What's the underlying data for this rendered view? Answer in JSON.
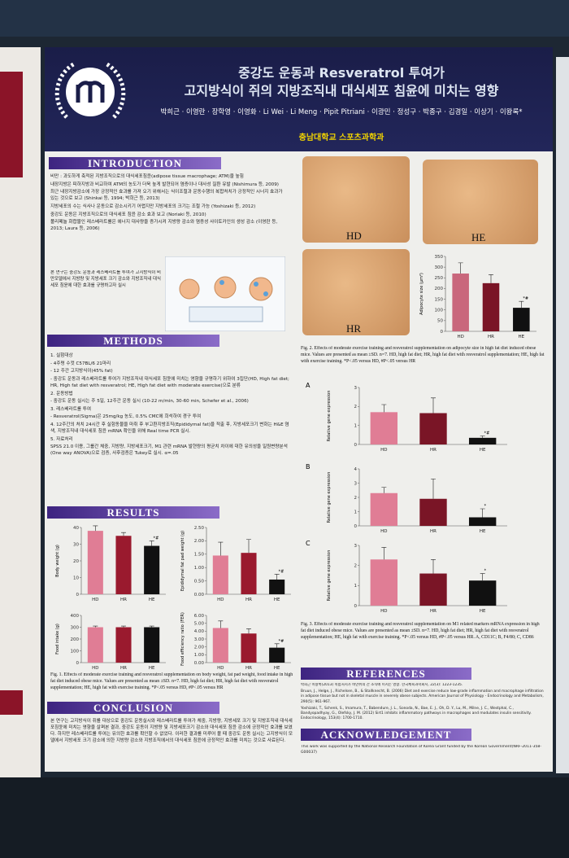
{
  "header": {
    "title_lines": [
      "중강도 운동과 Resveratrol 투여가",
      "고지방식이 쥐의 지방조직내 대식세포 침윤에 미치는 영향"
    ],
    "authors": "박희근 · 이영란 · 장학영 · 이영화 · Li Wei · Li Meng · Pipit Pitriani · 이광민 · 정성구 · 박종구 · 김경일 · 이상기 · 이왕록*",
    "affiliation": "충남대학교 스포츠과학과"
  },
  "introduction": {
    "heading": "INTRODUCTION",
    "bullets": [
      "비만 : 과도하게 축적된 지방조직으로의 대식세포침윤(adipose tissue macrophage; ATM)을 높힘",
      "내장지방은 피하지방과 비교하여 ATM의 농도가 더욱 높게 발현되어 염증이나 대사성 질환 유발 (Nishimura 등, 2009)",
      "최근 내장지방감소에 가장 긍정적인 효과를 가져 오기 위해서는 식이조절과 운동수행의 복합처치가 긍정적인 시너지 효과가 있는 것으로 보고 (Shinkai 등, 1994; 박희근 등, 2013)",
      "지방세포의 수는 식사나 운동으로 감소시키기 어렵지만 지방세포의 크기는 조절 가능 (Yoshizaki 등, 2012)",
      "중강도 운동은 지방조직으로의 대식세포 침윤 감소 효과 보고 (Noriaki 등, 2010)",
      "폴리페놀 화합물인 레스베라트롤은 에너지 대사량을 증가시켜 지방량 감소와 염증성 사이토카인의 생성 감소 (이영란 등, 2013; Laura 등, 2006)"
    ],
    "aim": "본 연구는 중강도 운동과 레스베라트롤 투여가 고지방식이 비만모델에서 지방량 및 지방세포 크기 감소와 지방조직내 대식세포 침윤에 대한 효과를 규명하고자 실시"
  },
  "methods": {
    "heading": "METHODS",
    "items": [
      "1. 실험대상",
      "- 4주령 수컷 C57BL/6 21마리",
      "- 12 주간 고지방식이(45% fat)",
      "- 중강도 운동과 레스베라트롤 투여가 지방조직내 대식세포 침윤에 미치는 영향을 규명하기 위하여 3집단(HD, High fat diet; HR, High fat diet with resveratrol; HE, High fat diet with moderate exercise)으로 분류",
      "2. 운동방법",
      "- 중강도 운동 실시는 주 5일, 12주간 운동 실시 (10-22 m/min, 30-60 min, Schefer et al., 2006)",
      "3. 레스베라트롤 투여",
      "- Resveratrol(Sigma)은 25mg/kg 농도, 0.5% CMC에 희석하여 경구 투여",
      "4. 12주간의 처치 24시간 후 실험동물을 마취 후 부고환지방조직(Epididymal fat)을 적출 후, 지방세포크기 변화는 H&E 염색, 지방조직내 대식세포 침윤 mRNA 확인을 위해 Real time PCR 실시.",
      "5. 자료처리",
      "SPSS 21.0 이용, 그룹간 체중, 지방량, 지방세포크기, M1 관련 mRNA 발현량의 평균치 차이에 대한 유의성을 일원변량분석(One way ANOVA)으로 검증, 사후검증은 Tukey로 실시. α=.05"
    ]
  },
  "results": {
    "heading": "RESULTS",
    "figure1_caption": "Fig. 1. Effects of moderate exercise training and resveratrol supplementation on body weight, fat pad weight, food intake in high fat diet induced obese mice. Values are presented as mean ±SD. n=7. HD, high fat diet; HR, high fat diet with resveratrol supplementation; HE, high fat with exercise training. *P<.05 versus HD, #P<.05 versus HR"
  },
  "figure_images": {
    "labels": [
      "HD",
      "HE",
      "HR"
    ]
  },
  "figure2_caption": "Fig. 2. Effects of moderate exercise training and resveratrol supplementation on adipocyte size in high fat diet induced obese mice. Values are presented as mean ±SD. n=7. HD, high fat diet; HR, high fat diet with resveratrol supplementation; HE, high fat with exercise training. *P<.05 versus HD, #P<.05 versus HR",
  "figure3_caption": "Fig. 3. Effects of moderate exercise training and resveratrol supplementation on M1 related markers mRNA expression in high fat diet induced obese mice. Values are presented as mean ±SD. n=7. HD, high fat diet; HR, high fat diet with resveratrol supplementation; HE, high fat with exercise training. *P<.05 versus HD, #P<.05 versus HR. A, CD11C; B, F4/80; C, CD86",
  "charts": [
    {
      "type": "bar",
      "ylabel": "Adipocyte size (μm²)",
      "categories": [
        "HD",
        "HR",
        "HE"
      ],
      "values": [
        270,
        225,
        110
      ],
      "errors": [
        50,
        40,
        30
      ],
      "colors": [
        "#c9677c",
        "#7a1526",
        "#111111"
      ],
      "ylim": [
        0,
        350
      ],
      "yticks": [
        0,
        50,
        100,
        150,
        200,
        250,
        300,
        350
      ],
      "annotations": [
        null,
        null,
        "*#"
      ]
    },
    {
      "type": "bar",
      "panel": "A",
      "ylabel": "Relative gene expression",
      "categories": [
        "HD",
        "HR",
        "HE"
      ],
      "values": [
        1.7,
        1.65,
        0.35
      ],
      "errors": [
        0.4,
        0.8,
        0.1
      ],
      "colors": [
        "#e07d95",
        "#7a1526",
        "#111111"
      ],
      "ylim": [
        0,
        3
      ],
      "yticks": [
        0,
        1,
        2,
        3
      ],
      "annotations": [
        null,
        null,
        "*#"
      ]
    },
    {
      "type": "bar",
      "panel": "B",
      "ylabel": "Relative gene expression",
      "categories": [
        "HD",
        "HR",
        "HE"
      ],
      "values": [
        2.3,
        1.9,
        0.6
      ],
      "errors": [
        0.4,
        1.4,
        0.6
      ],
      "colors": [
        "#e07d95",
        "#7a1526",
        "#111111"
      ],
      "ylim": [
        0,
        4
      ],
      "yticks": [
        0,
        1,
        2,
        3,
        4
      ],
      "annotations": [
        null,
        null,
        "*"
      ]
    },
    {
      "type": "bar",
      "panel": "C",
      "ylabel": "Relative gene expression",
      "categories": [
        "HD",
        "HR",
        "HE"
      ],
      "values": [
        2.3,
        1.6,
        1.25
      ],
      "errors": [
        0.6,
        0.7,
        0.35
      ],
      "colors": [
        "#e07d95",
        "#7a1526",
        "#111111"
      ],
      "ylim": [
        0,
        3
      ],
      "yticks": [
        0,
        1,
        2,
        3
      ],
      "annotations": [
        null,
        null,
        "*"
      ]
    },
    {
      "type": "bar",
      "ylabel": "Body weight (g)",
      "categories": [
        "HD",
        "HR",
        "HE"
      ],
      "values": [
        38,
        35,
        29
      ],
      "errors": [
        3,
        2,
        3
      ],
      "colors": [
        "#e07d95",
        "#9a1a2e",
        "#111111"
      ],
      "ylim": [
        0,
        40
      ],
      "yticks": [
        0,
        10,
        20,
        30,
        40
      ],
      "annotations": [
        null,
        null,
        "*#"
      ]
    },
    {
      "type": "bar",
      "ylabel": "Epididymal fat pad weight (g)",
      "categories": [
        "HD",
        "HR",
        "HE"
      ],
      "values": [
        1.45,
        1.55,
        0.55
      ],
      "errors": [
        0.5,
        0.5,
        0.2
      ],
      "colors": [
        "#e07d95",
        "#9a1a2e",
        "#111111"
      ],
      "ylim": [
        0,
        2.5
      ],
      "yticks": [
        {
          "value": 0,
          "label": "0.00"
        },
        {
          "value": 0.5,
          "label": "0.50"
        },
        {
          "value": 1,
          "label": "1.00"
        },
        {
          "value": 1.5,
          "label": "1.50"
        },
        {
          "value": 2,
          "label": "2.00"
        },
        {
          "value": 2.5,
          "label": "2.50"
        }
      ],
      "annotations": [
        null,
        null,
        "*#"
      ]
    },
    {
      "type": "bar",
      "ylabel": "Food intake (g)",
      "categories": [
        "HD",
        "HR",
        "HE"
      ],
      "values": [
        300,
        300,
        300
      ],
      "errors": [
        10,
        10,
        10
      ],
      "colors": [
        "#e07d95",
        "#9a1a2e",
        "#111111"
      ],
      "ylim": [
        0,
        400
      ],
      "yticks": [
        0,
        100,
        200,
        300,
        400
      ],
      "annotations": [
        null,
        null,
        null
      ]
    },
    {
      "type": "bar",
      "ylabel": "Food efficiency ratio (FER)",
      "categories": [
        "HD",
        "HR",
        "HE"
      ],
      "values": [
        4.4,
        3.7,
        1.9
      ],
      "errors": [
        0.9,
        0.6,
        0.5
      ],
      "colors": [
        "#e07d95",
        "#9a1a2e",
        "#111111"
      ],
      "ylim": [
        0,
        6
      ],
      "yticks": [
        {
          "value": 0,
          "label": "0.00"
        },
        {
          "value": 1,
          "label": "1.00"
        },
        {
          "value": 2,
          "label": "2.00"
        },
        {
          "value": 3,
          "label": "3.00"
        },
        {
          "value": 4,
          "label": "4.00"
        },
        {
          "value": 5,
          "label": "5.00"
        },
        {
          "value": 6,
          "label": "6.00"
        }
      ],
      "annotations": [
        null,
        null,
        "*#"
      ]
    }
  ],
  "conclusion": {
    "heading": "CONCLUSION",
    "text": "본 연구는 고지방식이 쥐를 대상으로 중강도 운동실시와 레스베라트롤 투여가 체중, 지방량, 지방세포 크기 및 지방조직내 대식세포침윤에 미치는 영향을 살펴본 결과, 중강도 운동이 지방량 및 지방세포크기 감소와 대식세포 침윤 감소에 긍정적인 효과를 보였다. 하지만 레스베라트롤 투여는 유의한 효과를 확인할 수 없었다. 이러한 결과를 미루어 볼 때 중강도 운동 실시는 고지방식이 모델에서 지방세포 크기 감소에 의한 지방량 감소와 지방조직에서의 대식세포 침윤에 긍정적인 효과를 미치는 것으로 사료된다."
  },
  "references": {
    "heading": "REFERENCES",
    "items": [
      "박희근 이왕록(2013) 복합처치가 비만쥐의 간 조직에 미치는 영향. 한국체육과학회지, 22(3): 1223-1235.",
      "Bruun, J., Helge, J., Richelsen, B., & Stallknecht, B. (2006) Diet and exercise reduce low-grade inflammation and macrophage infiltration in adipose tissue but not in skeletal muscle in severely obese subjects. American Journal of Physiology - Endocrinology and Metabolism, 290(5): 961-967.",
      "Yoshizaki, T., Schenk, S., Imamura, T., Babendure, J. L., Sonoda, N., Bae, E. J., Oh, D. Y., Lu, M., Milne, J. C., Westphal, C., Bandyopadhyay, G., Olefsky, J. M. (2012) Sirt1 inhibits inflammatory pathways in macrophages and modulates insulin sensitivity. Endocrinology, 153(4): 1700-1710."
    ]
  },
  "acknowledgement": {
    "heading": "ACKNOWLEDGEMENT",
    "text": "This work was supported by the National Research Foundation of Korea Grant funded by the Korean Government(NRF-2011-358-G00037)"
  }
}
